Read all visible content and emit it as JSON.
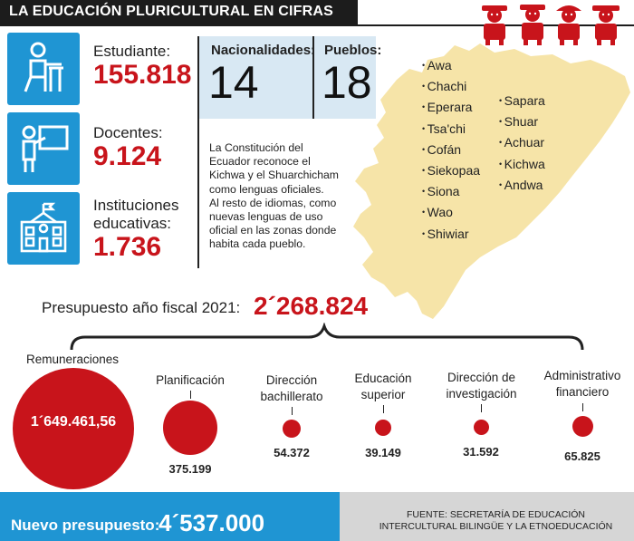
{
  "header": {
    "title": "LA EDUCACIÓN PLURICULTURAL EN CIFRAS"
  },
  "stats": [
    {
      "label": "Estudiante:",
      "value": "155.818",
      "icon": "student-desk-icon"
    },
    {
      "label": "Docentes:",
      "value": "9.124",
      "icon": "teacher-board-icon"
    },
    {
      "label_line1": "Instituciones",
      "label_line2": "educativas:",
      "value": "1.736",
      "icon": "school-building-icon"
    }
  ],
  "nationalities": {
    "label": "Nacionalidades:",
    "value": "14"
  },
  "pueblos": {
    "label": "Pueblos:",
    "value": "18"
  },
  "constitution_text": [
    "La Constitución del",
    "Ecuador reconoce el",
    "Kichwa y el Shuarchicham",
    "como lenguas oficiales.",
    "Al resto de idiomas, como",
    "nuevas lenguas de uso",
    "oficial en las zonas donde",
    "habita cada pueblo."
  ],
  "peoples_col1": [
    "Awa",
    "Chachi",
    "Eperara",
    "Tsa'chi",
    "Cofán",
    "Siekopaa",
    "Siona",
    "Wao",
    "Shiwiar"
  ],
  "peoples_col2": [
    "Sapara",
    "Shuar",
    "Achuar",
    "Kichwa",
    "Andwa"
  ],
  "budget": {
    "label": "Presupuesto año fiscal 2021:",
    "value": "2´268.824"
  },
  "categories": [
    {
      "label_line1": "Remuneraciones",
      "label_line2": "",
      "value": "1´649.461,56"
    },
    {
      "label_line1": "Planificación",
      "label_line2": "",
      "value": "375.199"
    },
    {
      "label_line1": "Dirección",
      "label_line2": "bachillerato",
      "value": "54.372"
    },
    {
      "label_line1": "Educación",
      "label_line2": "superior",
      "value": "39.149"
    },
    {
      "label_line1": "Dirección de",
      "label_line2": "investigación",
      "value": "31.592"
    },
    {
      "label_line1": "Administrativo",
      "label_line2": "financiero",
      "value": "65.825"
    }
  ],
  "footer": {
    "new_budget_label": "Nuevo presupuesto:",
    "new_budget_value": "4´537.000",
    "source_line1": "FUENTE: SECRETARÍA DE EDUCACIÓN",
    "source_line2": "INTERCULTURAL BILINGÜE Y LA ETNOEDUCACIÓN"
  },
  "colors": {
    "accent_red": "#c8141b",
    "accent_blue": "#1f95d3",
    "map_fill": "#f6e4a8",
    "panel_blue": "#d8e8f3"
  }
}
